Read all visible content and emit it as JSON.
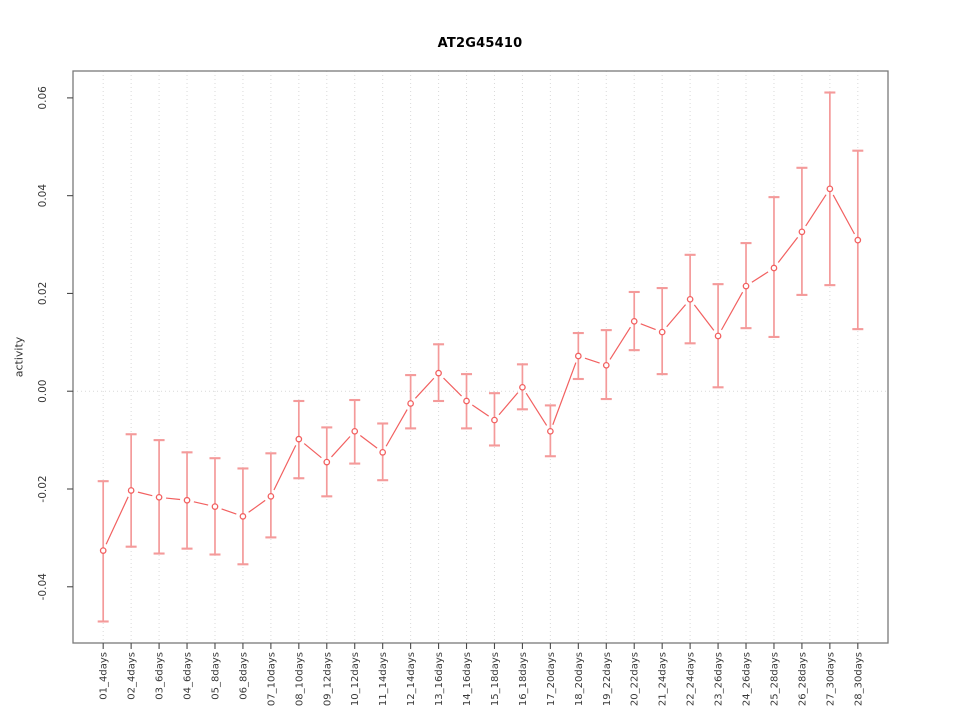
{
  "figure": {
    "background": "#ffffff"
  },
  "chart_data": {
    "type": "line",
    "title": "AT2G45410",
    "xlabel": "",
    "ylabel": "activity",
    "legend": "none",
    "grid": "vertical dotted gridlines at each category plus dotted horizontal zero line",
    "x_tick_rotation": "vertical",
    "marker": "open-circle",
    "categories": [
      "01_4days",
      "02_4days",
      "03_6days",
      "04_6days",
      "05_8days",
      "06_8days",
      "07_10days",
      "08_10days",
      "09_12days",
      "10_12days",
      "11_14days",
      "12_14days",
      "13_16days",
      "14_16days",
      "15_18days",
      "16_18days",
      "17_20days",
      "18_20days",
      "19_22days",
      "20_22days",
      "21_24days",
      "22_24days",
      "23_26days",
      "24_26days",
      "25_28days",
      "26_28days",
      "27_30days",
      "28_30days"
    ],
    "series": [
      {
        "name": "activity",
        "values": [
          -0.0326,
          -0.0203,
          -0.0217,
          -0.0223,
          -0.0236,
          -0.0256,
          -0.0215,
          -0.0098,
          -0.0145,
          -0.0082,
          -0.0125,
          -0.0025,
          0.0037,
          -0.002,
          -0.0059,
          0.0008,
          -0.0082,
          0.0072,
          0.0053,
          0.0143,
          0.0121,
          0.0188,
          0.0113,
          0.0215,
          0.0252,
          0.0326,
          0.0414,
          0.0309
        ],
        "error_low": [
          -0.0471,
          -0.0318,
          -0.0332,
          -0.0322,
          -0.0334,
          -0.0354,
          -0.0299,
          -0.0178,
          -0.0215,
          -0.0148,
          -0.0182,
          -0.0076,
          -0.002,
          -0.0076,
          -0.0111,
          -0.0037,
          -0.0133,
          0.0025,
          -0.0016,
          0.0084,
          0.0035,
          0.0098,
          0.0008,
          0.0129,
          0.0111,
          0.0197,
          0.0217,
          0.0127
        ],
        "error_high": [
          -0.0184,
          -0.0088,
          -0.01,
          -0.0125,
          -0.0137,
          -0.0158,
          -0.0127,
          -0.002,
          -0.0074,
          -0.0018,
          -0.0066,
          0.0033,
          0.0096,
          0.0035,
          -0.0004,
          0.0055,
          -0.0029,
          0.0119,
          0.0125,
          0.0203,
          0.0211,
          0.0279,
          0.0219,
          0.0303,
          0.0397,
          0.0457,
          0.0611,
          0.0492
        ]
      }
    ],
    "ylim": [
      -0.0515,
      0.0655
    ],
    "yticks": [
      -0.04,
      -0.02,
      0,
      0.02,
      0.04,
      0.06
    ],
    "ytick_labels": [
      "-0.04",
      "-0.02",
      "0.00",
      "0.02",
      "0.04",
      "0.06"
    ],
    "colors": {
      "line": "#f26060",
      "error_bar": "#f49a9a",
      "grid": "#d9d9d9",
      "axis_box": "#7a7a7a",
      "tick": "#4a4a4a",
      "tick_text": "#383838"
    }
  }
}
